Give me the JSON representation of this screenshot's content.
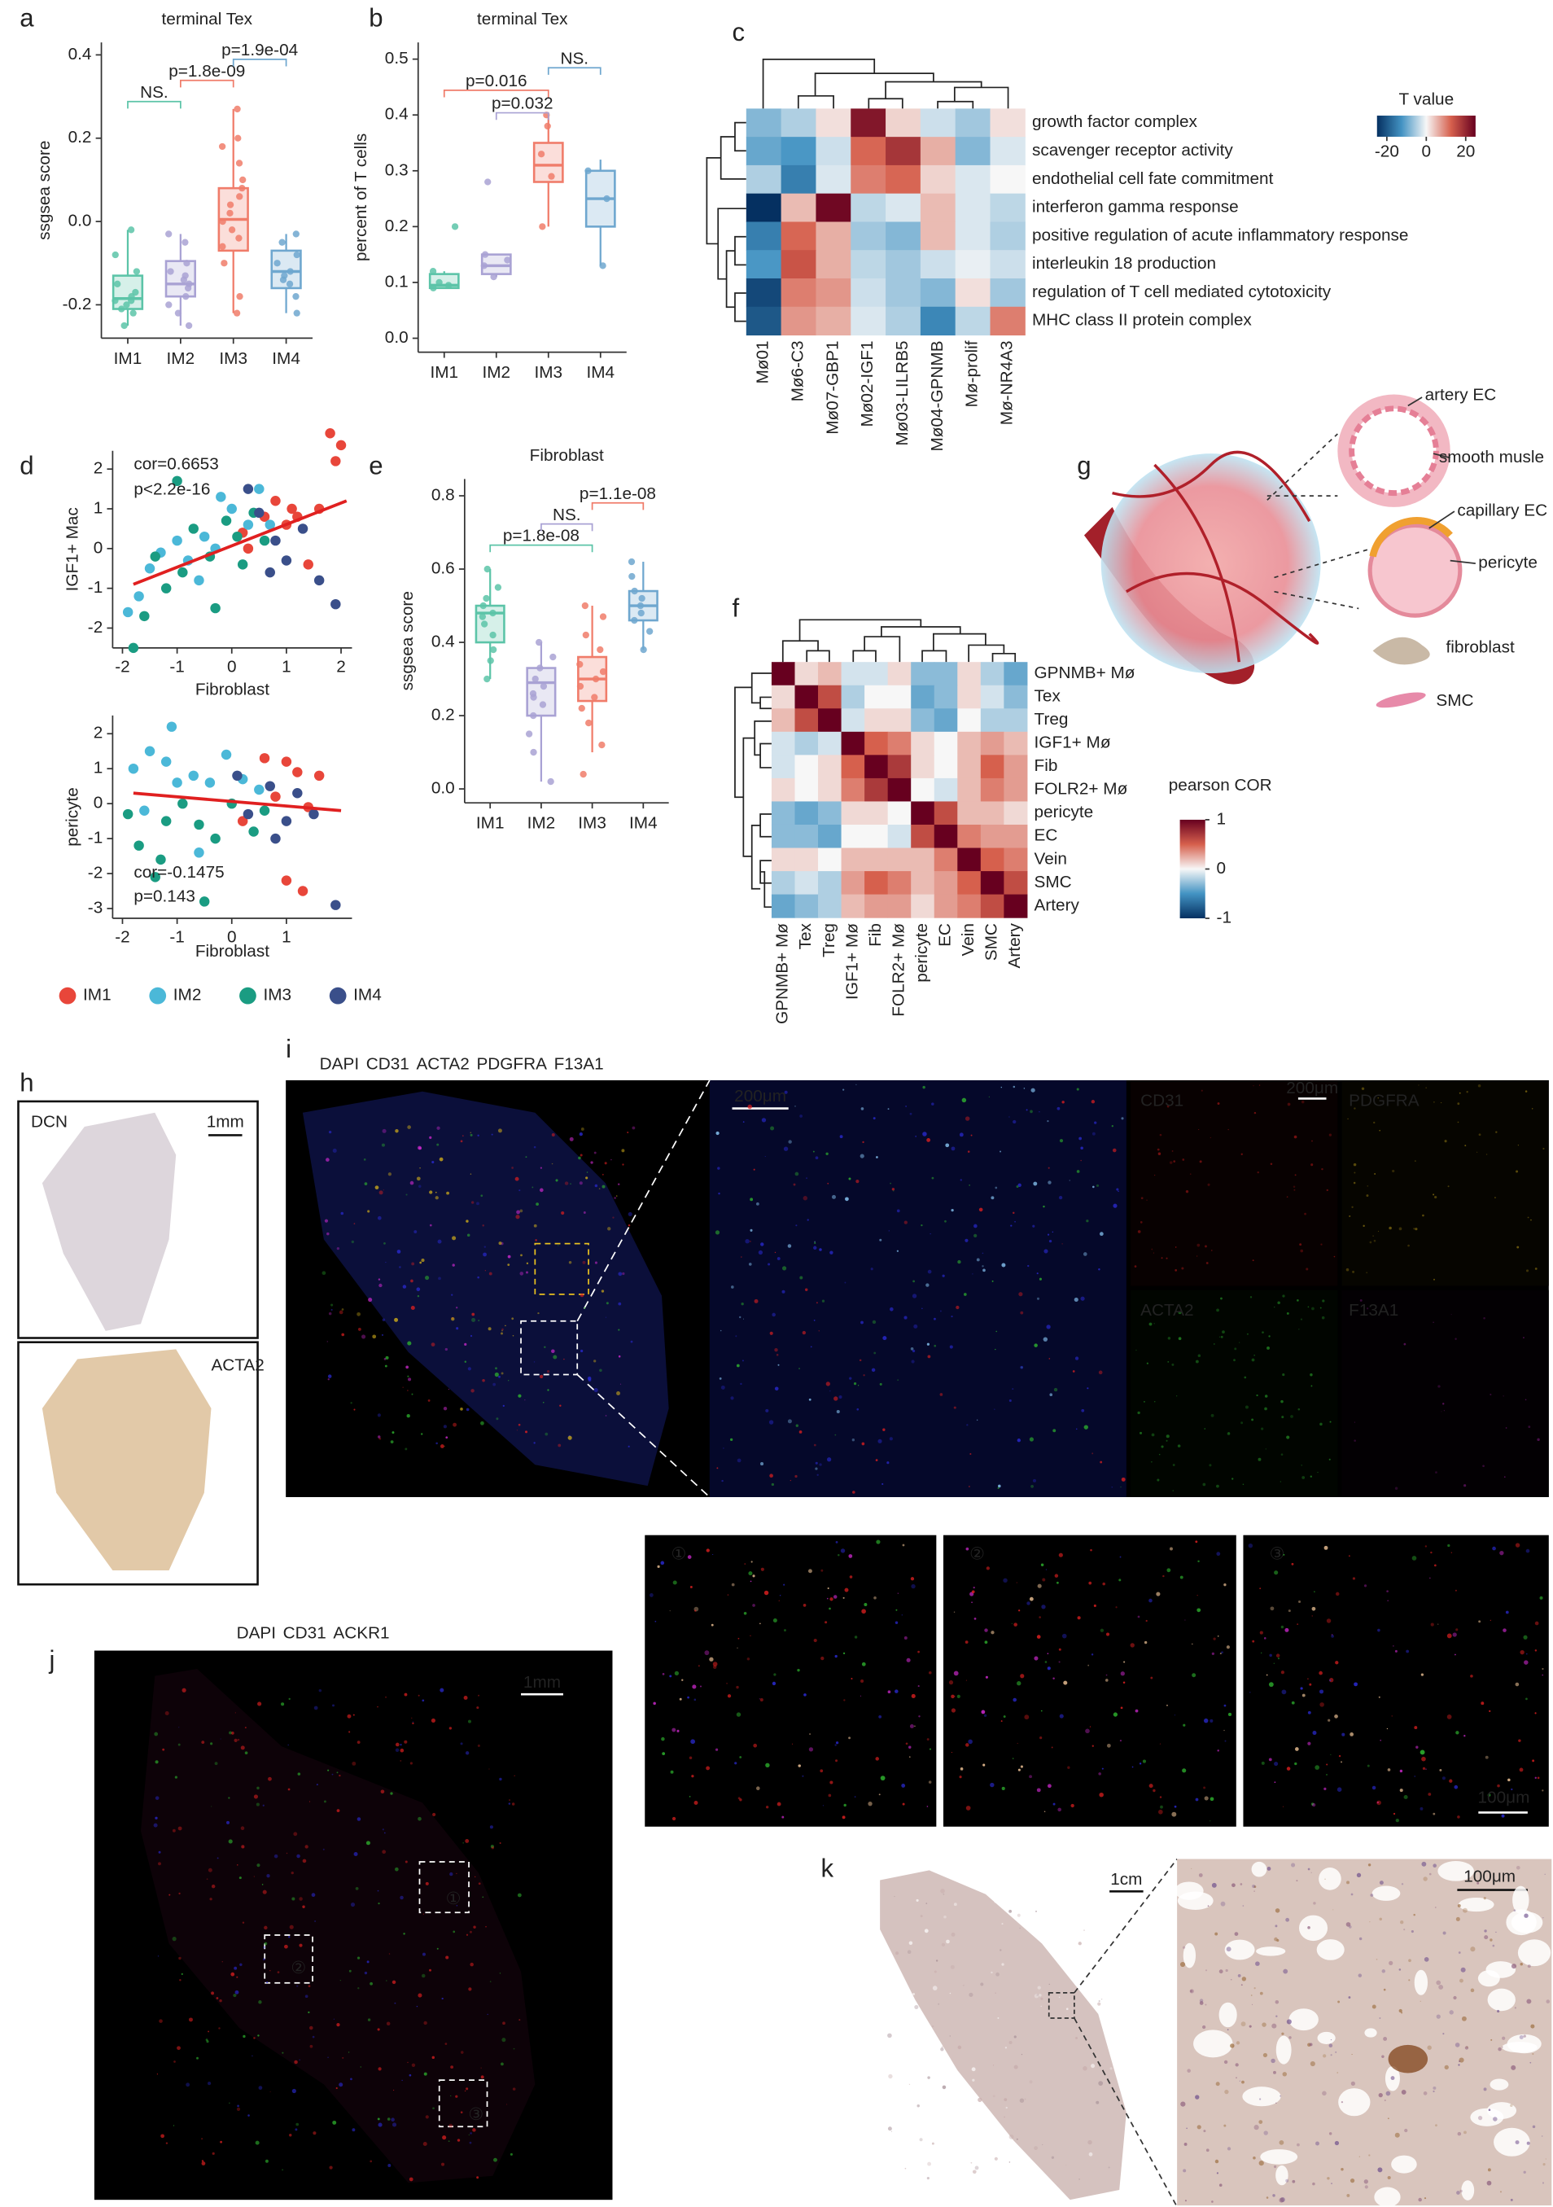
{
  "panel_labels": [
    "a",
    "b",
    "c",
    "d",
    "e",
    "f",
    "g",
    "h",
    "i",
    "j",
    "k"
  ],
  "chart_data": [
    {
      "type": "box",
      "title": "terminal Tex",
      "ylabel": "ssgsea score",
      "categories": [
        "IM1",
        "IM2",
        "IM3",
        "IM4"
      ],
      "colors": [
        "#5cc4a8",
        "#a9a2d4",
        "#f07c6a",
        "#6fa7cf"
      ],
      "ylim": [
        -0.28,
        0.43
      ],
      "yticks": [
        -0.2,
        {
          "value": 0,
          "label": "0.0"
        },
        0.2,
        0.4
      ],
      "boxes": [
        {
          "low": -0.25,
          "q1": -0.21,
          "median": -0.185,
          "q3": -0.13,
          "high": -0.02,
          "points": [
            -0.25,
            -0.22,
            -0.2,
            -0.19,
            -0.18,
            -0.17,
            -0.15,
            -0.12,
            -0.08,
            -0.02,
            -0.21,
            -0.19
          ]
        },
        {
          "low": -0.25,
          "q1": -0.18,
          "median": -0.15,
          "q3": -0.095,
          "high": -0.03,
          "points": [
            -0.25,
            -0.22,
            -0.18,
            -0.16,
            -0.15,
            -0.14,
            -0.12,
            -0.1,
            -0.05,
            -0.03,
            -0.2,
            -0.13
          ]
        },
        {
          "low": -0.22,
          "q1": -0.07,
          "median": 0.005,
          "q3": 0.08,
          "high": 0.27,
          "points": [
            -0.22,
            -0.18,
            -0.1,
            -0.06,
            -0.02,
            0.0,
            0.02,
            0.04,
            0.06,
            0.08,
            0.1,
            0.14,
            0.18,
            0.27,
            0.2,
            -0.04
          ]
        },
        {
          "low": -0.22,
          "q1": -0.16,
          "median": -0.12,
          "q3": -0.07,
          "high": -0.03,
          "points": [
            -0.22,
            -0.18,
            -0.15,
            -0.13,
            -0.12,
            -0.1,
            -0.08,
            -0.05,
            -0.03,
            -0.14
          ]
        }
      ],
      "comparisons": [
        {
          "groups": [
            "IM1",
            "IM2"
          ],
          "label": "NS.",
          "color": "#5cc4a8"
        },
        {
          "groups": [
            "IM2",
            "IM3"
          ],
          "label": "p=1.8e-09",
          "color": "#f07c6a"
        },
        {
          "groups": [
            "IM3",
            "IM4"
          ],
          "label": "p=1.9e-04",
          "color": "#6fa7cf"
        }
      ]
    },
    {
      "type": "box",
      "title": "terminal Tex",
      "ylabel": "percent of T cells",
      "categories": [
        "IM1",
        "IM2",
        "IM3",
        "IM4"
      ],
      "colors": [
        "#5cc4a8",
        "#a9a2d4",
        "#f07c6a",
        "#6fa7cf"
      ],
      "ylim": [
        -0.025,
        0.53
      ],
      "yticks": [
        {
          "value": 0,
          "label": "0.0"
        },
        0.1,
        0.2,
        0.3,
        0.4,
        0.5
      ],
      "boxes": [
        {
          "low": 0.09,
          "q1": 0.09,
          "median": 0.095,
          "q3": 0.115,
          "high": 0.12,
          "points": [
            0.09,
            0.095,
            0.1,
            0.12,
            0.2
          ]
        },
        {
          "low": 0.11,
          "q1": 0.115,
          "median": 0.13,
          "q3": 0.15,
          "high": 0.15,
          "points": [
            0.11,
            0.13,
            0.14,
            0.15,
            0.28
          ]
        },
        {
          "low": 0.2,
          "q1": 0.28,
          "median": 0.31,
          "q3": 0.35,
          "high": 0.4,
          "points": [
            0.2,
            0.29,
            0.33,
            0.38,
            0.4
          ]
        },
        {
          "low": 0.13,
          "q1": 0.2,
          "median": 0.25,
          "q3": 0.3,
          "high": 0.32,
          "points": [
            0.13,
            0.25,
            0.3
          ]
        }
      ],
      "comparisons": [
        {
          "groups": [
            "IM2",
            "IM3"
          ],
          "label": "p=0.032",
          "color": "#a9a2d4"
        },
        {
          "groups": [
            "IM1",
            "IM3"
          ],
          "label": "p=0.016",
          "color": "#f07c6a"
        },
        {
          "groups": [
            "IM3",
            "IM4"
          ],
          "label": "NS.",
          "color": "#6fa7cf"
        }
      ]
    },
    {
      "type": "heatmap",
      "rows": [
        "growth factor complex",
        "scavenger receptor activity",
        "endothelial cell fate commitment",
        "interferon gamma response",
        "positive regulation of acute inflammatory response",
        "interleukin 18 production",
        "regulation of T cell mediated cytotoxicity",
        "MHC class II protein complex"
      ],
      "columns": [
        "Mø01",
        "Mø6-C3",
        "Mø07-GBP1",
        "Mø02-IGF1",
        "Mø03-LILRB5",
        "Mø04-GPNMB",
        "Mø-prolif",
        "Mø-NR4A3"
      ],
      "values": [
        [
          -8,
          -5,
          2,
          22,
          3,
          -3,
          -6,
          2
        ],
        [
          -10,
          -12,
          -3,
          12,
          18,
          6,
          -8,
          -2
        ],
        [
          -5,
          -15,
          -2,
          10,
          12,
          3,
          -2,
          0
        ],
        [
          -25,
          5,
          24,
          -4,
          -2,
          5,
          -2,
          -4
        ],
        [
          -15,
          12,
          6,
          -6,
          -8,
          5,
          -2,
          -5
        ],
        [
          -12,
          14,
          6,
          -4,
          -6,
          -3,
          -1,
          -3
        ],
        [
          -22,
          10,
          8,
          -3,
          -6,
          -8,
          2,
          -6
        ],
        [
          -20,
          8,
          6,
          -2,
          -5,
          -14,
          -4,
          10
        ]
      ],
      "zlim": [
        -25,
        25
      ],
      "colors": [
        "#053061",
        "#4393c3",
        "#f7f7f7",
        "#d6604d",
        "#67001f"
      ],
      "colorbar_title": "T value",
      "colorbar_ticks": [
        -20,
        0,
        20
      ],
      "orientation": "horizontal"
    },
    {
      "type": "scatter",
      "xlabel": "Fibroblast",
      "ylabel": "IGF1+ Mac",
      "xlim": [
        -2.18,
        2.2
      ],
      "ylim": [
        -2.5,
        2.46
      ],
      "xticks": [
        -2,
        -1,
        0,
        1,
        2
      ],
      "yticks": [
        -2,
        -1,
        0,
        1,
        2
      ],
      "annotations": [
        "cor=0.6653",
        "p<2.2e-16"
      ],
      "fit": {
        "x": [
          -1.8,
          2.1
        ],
        "y": [
          -0.9,
          1.2
        ],
        "color": "#e02020"
      },
      "series": [
        {
          "name": "IM1",
          "color": "#e8463a",
          "x": [
            1.8,
            2.0,
            1.9,
            1.6,
            1.2,
            1.0,
            0.8,
            0.6,
            0.2,
            1.4,
            0.3,
            1.1
          ],
          "y": [
            2.9,
            2.6,
            2.2,
            1.0,
            0.8,
            0.6,
            1.2,
            0.8,
            0.4,
            -0.4,
            0.0,
            1.0
          ]
        },
        {
          "name": "IM2",
          "color": "#4bb8d8",
          "x": [
            -1.7,
            -1.5,
            -1.3,
            -1.0,
            -0.8,
            -0.5,
            -0.3,
            -0.2,
            0.0,
            0.5,
            0.7,
            -1.9,
            -0.6,
            0.3
          ],
          "y": [
            -1.2,
            -0.5,
            -0.1,
            0.2,
            -0.3,
            0.3,
            0.0,
            1.3,
            1.0,
            1.5,
            0.6,
            -1.6,
            -0.8,
            0.6
          ]
        },
        {
          "name": "IM3",
          "color": "#1a9c82",
          "x": [
            -1.8,
            -1.6,
            -1.2,
            -0.9,
            -0.7,
            -0.4,
            -0.1,
            0.1,
            0.4,
            -1.4,
            -0.3,
            0.2,
            -1.0,
            0.6
          ],
          "y": [
            -2.5,
            -1.7,
            -1.0,
            -0.6,
            0.5,
            -0.2,
            0.7,
            0.3,
            0.9,
            -0.2,
            -1.5,
            -0.4,
            1.7,
            0.2
          ]
        },
        {
          "name": "IM4",
          "color": "#3a4f8a",
          "x": [
            0.3,
            0.5,
            0.8,
            1.0,
            1.3,
            1.9,
            0.7,
            1.6
          ],
          "y": [
            1.5,
            0.9,
            0.2,
            -0.3,
            0.5,
            -1.4,
            -0.6,
            -0.8
          ]
        }
      ]
    },
    {
      "type": "scatter",
      "xlabel": "Fibroblast",
      "ylabel": "pericyte",
      "xlim": [
        -2.18,
        2.2
      ],
      "ylim": [
        -3.28,
        2.52
      ],
      "xticks": [
        -2,
        -1,
        0,
        1
      ],
      "yticks": [
        -3,
        -2,
        -1,
        0,
        1,
        2
      ],
      "annotations": [
        "cor=-0.1475",
        "p=0.143"
      ],
      "fit": {
        "x": [
          -1.8,
          2.0
        ],
        "y": [
          0.3,
          -0.2
        ],
        "color": "#e02020"
      },
      "series": [
        {
          "color": "#e8463a",
          "x": [
            1.0,
            1.2,
            0.6,
            0.8,
            1.4,
            1.0,
            1.3,
            1.6,
            0.2
          ],
          "y": [
            1.2,
            0.9,
            1.3,
            0.2,
            -0.1,
            -2.2,
            -2.5,
            0.8,
            -0.5
          ]
        },
        {
          "color": "#4bb8d8",
          "x": [
            -1.8,
            -1.5,
            -1.2,
            -1.0,
            -0.7,
            -0.4,
            -0.1,
            0.2,
            -1.6,
            -1.1,
            0.5,
            -0.6
          ],
          "y": [
            1.0,
            1.5,
            1.2,
            0.6,
            0.8,
            0.6,
            1.4,
            0.7,
            -0.2,
            2.2,
            0.4,
            -1.4
          ]
        },
        {
          "color": "#1a9c82",
          "x": [
            -1.9,
            -1.7,
            -1.4,
            -1.2,
            -0.9,
            -0.6,
            -0.3,
            0.0,
            0.4,
            -1.3,
            -0.5,
            0.6
          ],
          "y": [
            -0.3,
            -1.2,
            -2.1,
            -0.5,
            0.0,
            -0.6,
            -1.0,
            0.0,
            -0.8,
            -1.6,
            -2.8,
            -0.2
          ]
        },
        {
          "color": "#3a4f8a",
          "x": [
            0.3,
            0.7,
            1.0,
            1.2,
            1.5,
            1.9,
            0.8,
            0.1
          ],
          "y": [
            -0.3,
            0.5,
            -0.5,
            0.3,
            -0.3,
            -2.9,
            -1.0,
            0.8
          ]
        }
      ]
    },
    {
      "type": "box",
      "title": "Fibroblast",
      "ylabel": "ssgsea score",
      "categories": [
        "IM1",
        "IM2",
        "IM3",
        "IM4"
      ],
      "colors": [
        "#5cc4a8",
        "#a9a2d4",
        "#f07c6a",
        "#6fa7cf"
      ],
      "ylim": [
        -0.038,
        0.846
      ],
      "yticks": [
        {
          "value": 0,
          "label": "0.0"
        },
        0.2,
        0.4,
        0.6,
        0.8
      ],
      "boxes": [
        {
          "low": 0.3,
          "q1": 0.4,
          "median": 0.48,
          "q3": 0.5,
          "high": 0.6,
          "points": [
            0.3,
            0.38,
            0.42,
            0.45,
            0.47,
            0.48,
            0.5,
            0.52,
            0.55,
            0.6,
            0.35
          ]
        },
        {
          "low": 0.02,
          "q1": 0.2,
          "median": 0.29,
          "q3": 0.33,
          "high": 0.4,
          "points": [
            0.02,
            0.1,
            0.15,
            0.2,
            0.23,
            0.26,
            0.28,
            0.3,
            0.33,
            0.36,
            0.4,
            0.25
          ]
        },
        {
          "low": 0.1,
          "q1": 0.24,
          "median": 0.3,
          "q3": 0.36,
          "high": 0.5,
          "points": [
            0.04,
            0.12,
            0.18,
            0.22,
            0.25,
            0.28,
            0.3,
            0.32,
            0.34,
            0.38,
            0.42,
            0.47,
            0.5
          ]
        },
        {
          "low": 0.38,
          "q1": 0.46,
          "median": 0.5,
          "q3": 0.54,
          "high": 0.62,
          "points": [
            0.38,
            0.43,
            0.46,
            0.48,
            0.5,
            0.52,
            0.54,
            0.58,
            0.62
          ]
        }
      ],
      "comparisons": [
        {
          "groups": [
            "IM1",
            "IM3"
          ],
          "label": "p=1.8e-08",
          "color": "#5cc4a8"
        },
        {
          "groups": [
            "IM2",
            "IM3"
          ],
          "label": "NS.",
          "color": "#a9a2d4"
        },
        {
          "groups": [
            "IM3",
            "IM4"
          ],
          "label": "p=1.1e-08",
          "color": "#f07c6a"
        }
      ]
    },
    {
      "type": "heatmap",
      "rows": [
        "GPNMB+ Mø",
        "Tex",
        "Treg",
        "IGF1+ Mø",
        "Fib",
        "FOLR2+ Mø",
        "pericyte",
        "EC",
        "Vein",
        "SMC",
        "Artery"
      ],
      "columns": [
        "GPNMB+ Mø",
        "Tex",
        "Treg",
        "IGF1+ Mø",
        "Fib",
        "FOLR2+ Mø",
        "pericyte",
        "EC",
        "Vein",
        "SMC",
        "Artery"
      ],
      "values": [
        [
          1,
          0.1,
          0.2,
          -0.1,
          -0.1,
          0.1,
          -0.3,
          -0.3,
          0.1,
          -0.2,
          -0.4
        ],
        [
          0.1,
          1,
          0.6,
          -0.2,
          0.0,
          0.0,
          -0.4,
          -0.3,
          0.1,
          -0.1,
          -0.3
        ],
        [
          0.2,
          0.6,
          1,
          -0.1,
          0.1,
          0.1,
          -0.3,
          -0.4,
          0.0,
          -0.2,
          -0.2
        ],
        [
          -0.1,
          -0.2,
          -0.1,
          1,
          0.5,
          0.4,
          0.1,
          0.0,
          0.2,
          0.3,
          0.2
        ],
        [
          -0.1,
          0.0,
          0.1,
          0.5,
          1,
          0.7,
          0.1,
          0.0,
          0.2,
          0.5,
          0.3
        ],
        [
          0.1,
          0.0,
          0.1,
          0.4,
          0.7,
          1,
          0.0,
          -0.1,
          0.2,
          0.4,
          0.3
        ],
        [
          -0.3,
          -0.4,
          -0.3,
          0.1,
          0.1,
          0.0,
          1,
          0.6,
          0.2,
          0.2,
          0.1
        ],
        [
          -0.3,
          -0.3,
          -0.4,
          0.0,
          0.0,
          -0.1,
          0.6,
          1,
          0.4,
          0.3,
          0.3
        ],
        [
          0.1,
          0.1,
          0.0,
          0.2,
          0.2,
          0.2,
          0.2,
          0.4,
          1,
          0.5,
          0.4
        ],
        [
          -0.2,
          -0.1,
          -0.2,
          0.3,
          0.5,
          0.4,
          0.2,
          0.3,
          0.5,
          1,
          0.6
        ],
        [
          -0.4,
          -0.3,
          -0.2,
          0.2,
          0.3,
          0.3,
          0.1,
          0.3,
          0.4,
          0.6,
          1
        ]
      ],
      "zlim": [
        -1,
        1
      ],
      "colors": [
        "#053061",
        "#4393c3",
        "#f7f7f7",
        "#d6604d",
        "#67001f"
      ],
      "colorbar_title": "pearson COR",
      "colorbar_ticks": [
        1,
        0,
        -1
      ],
      "orientation": "vertical"
    }
  ],
  "schematic_g": {
    "labels": [
      "artery EC",
      "smooth musle",
      "capillary EC",
      "pericyte",
      "fibroblast",
      "SMC"
    ]
  },
  "image_h": {
    "stains": [
      "DCN",
      "ACTA2"
    ],
    "scale": "1mm"
  },
  "image_i": {
    "stains": [
      {
        "name": "DAPI",
        "color": "#2b2bd6"
      },
      {
        "name": "CD31",
        "color": "#e02020"
      },
      {
        "name": "ACTA2",
        "color": "#2fb82f"
      },
      {
        "name": "PDGFRA",
        "color": "#d4b01a"
      },
      {
        "name": "F13A1",
        "color": "#d42ad4"
      }
    ],
    "scale_bars": [
      "200μm",
      "200μm",
      "100μm"
    ],
    "channels": [
      {
        "name": "CD31",
        "color": "#e02020"
      },
      {
        "name": "PDGFRA",
        "color": "#d4b01a"
      },
      {
        "name": "ACTA2",
        "color": "#2fb82f"
      },
      {
        "name": "F13A1",
        "color": "#d42ad4"
      }
    ],
    "regions": [
      "①",
      "②",
      "③"
    ]
  },
  "image_j": {
    "stains": [
      {
        "name": "DAPI",
        "color": "#2b2bd6"
      },
      {
        "name": "CD31",
        "color": "#e02020"
      },
      {
        "name": "ACKR1",
        "color": "#2fb82f"
      }
    ],
    "scale": "1mm",
    "regions": [
      "①",
      "②",
      "③"
    ]
  },
  "image_k": {
    "scales": [
      "1cm",
      "100μm"
    ]
  }
}
